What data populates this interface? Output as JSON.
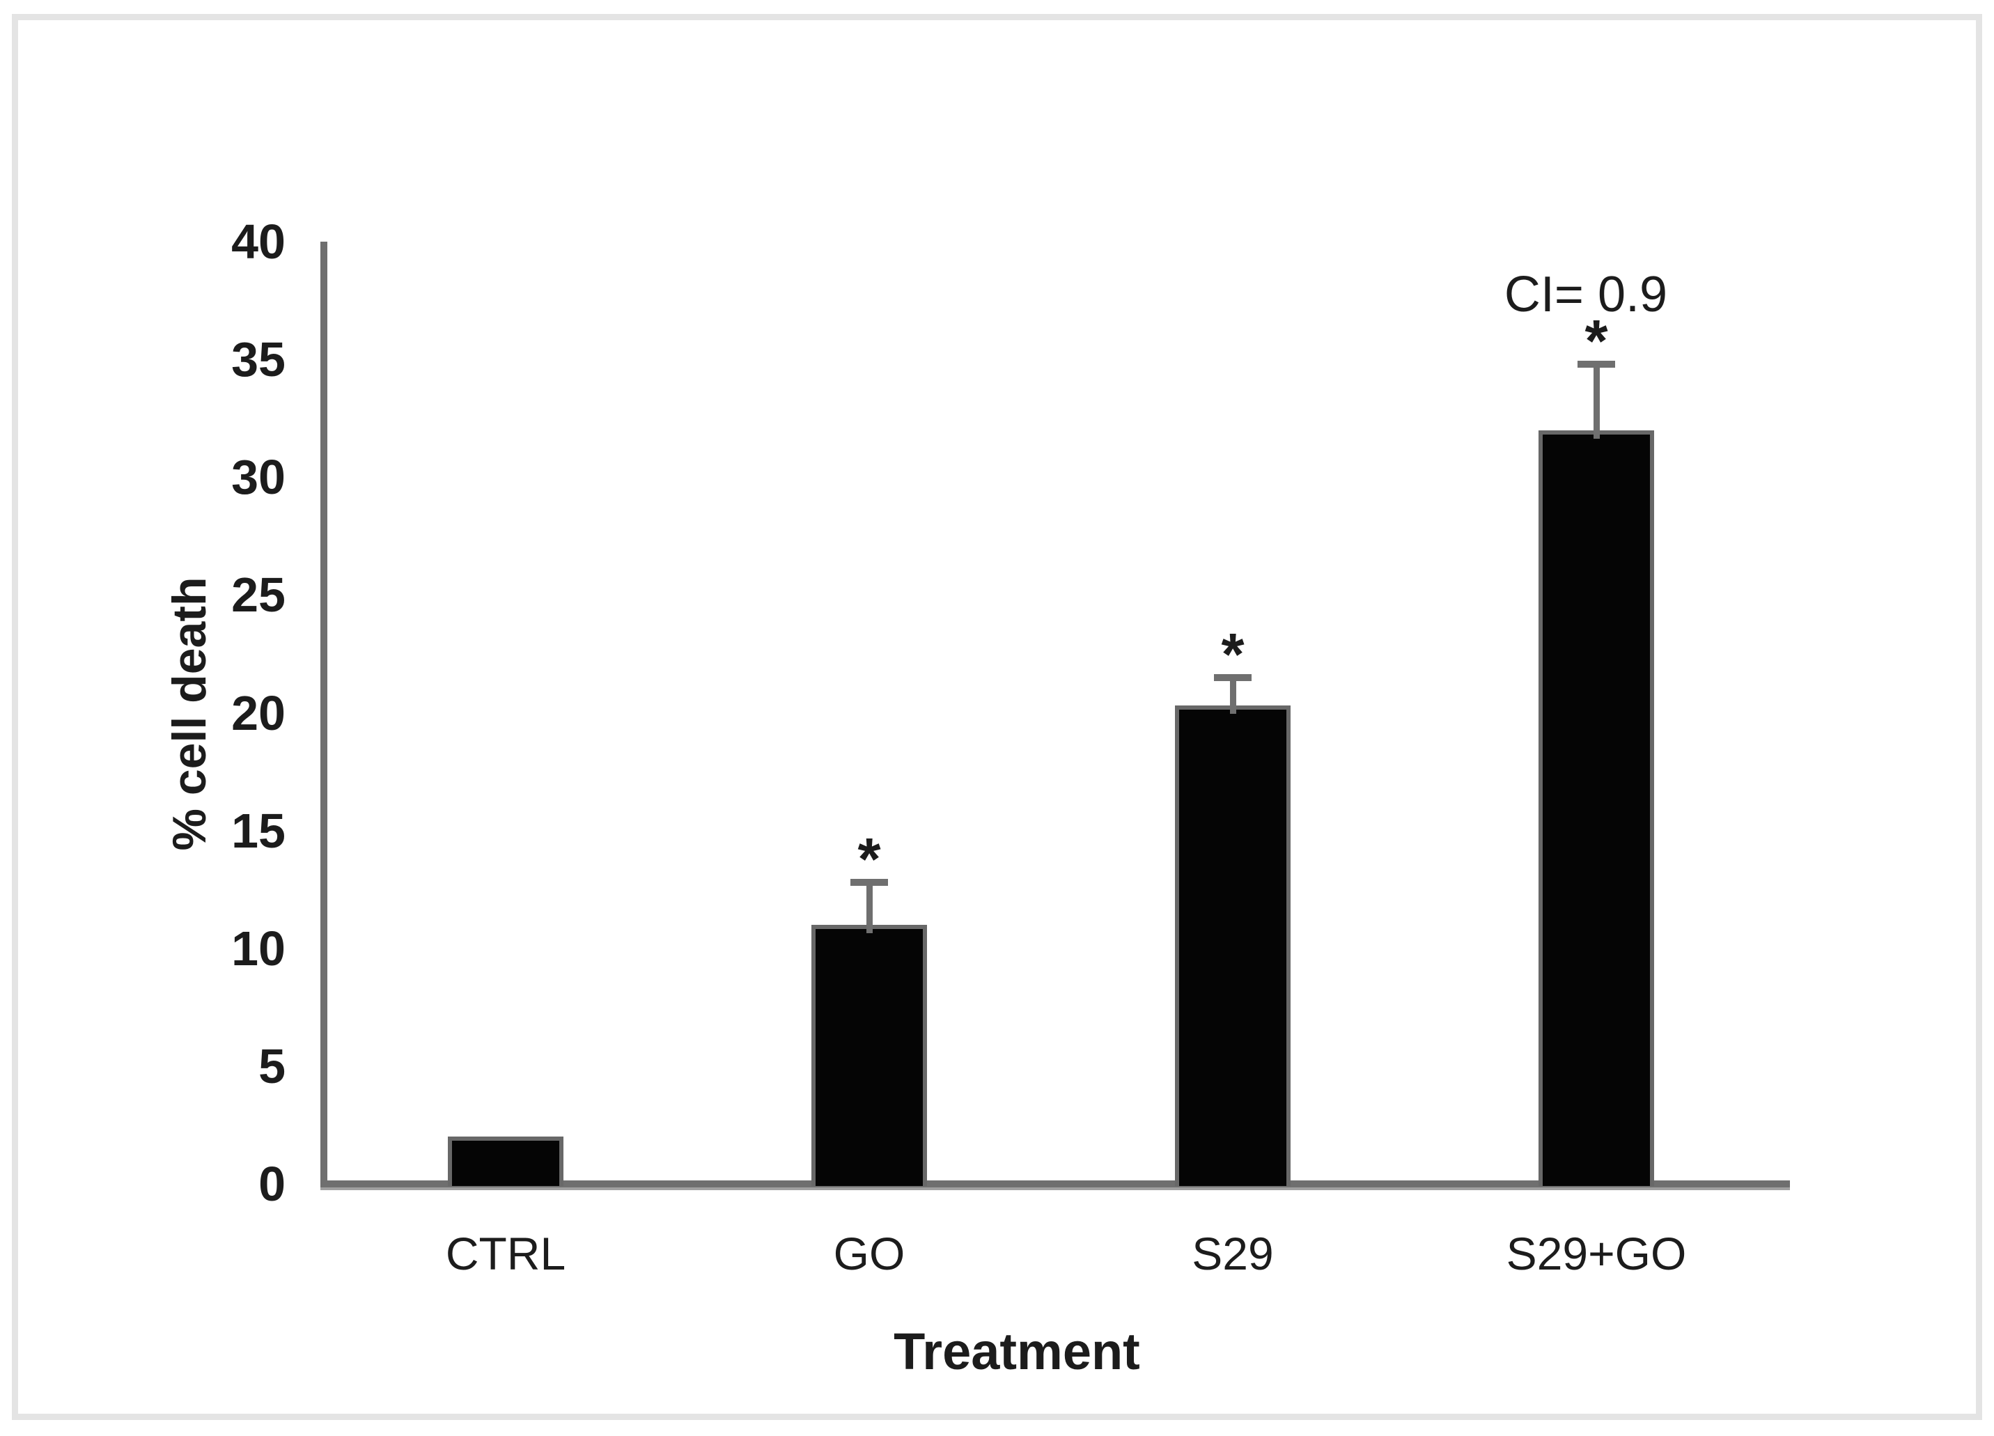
{
  "figure": {
    "background_color": "#ffffff",
    "frame_color": "#e4e4e4",
    "text_color": "#1c1c1c"
  },
  "chart_data": {
    "type": "bar",
    "title": "",
    "categories": [
      "CTRL",
      "GO",
      "S29",
      "S29+GO"
    ],
    "values": [
      2,
      11,
      20.3,
      32
    ],
    "error_plus": [
      0,
      1.8,
      1.2,
      2.8
    ],
    "significance": [
      false,
      true,
      true,
      true
    ],
    "sig_marker": "*",
    "annotations": [
      {
        "target_category": "S29+GO",
        "text": "CI= 0.9"
      }
    ],
    "xlabel": "Treatment",
    "ylabel": "% cell death",
    "yticks": [
      0,
      5,
      10,
      15,
      20,
      25,
      30,
      35,
      40
    ],
    "ylim": [
      0,
      40
    ],
    "grid": false,
    "legend": false,
    "bar_color": "#050505",
    "bar_border_color": "#686868",
    "axis_color": "#6f6f6f",
    "error_bar_color": "#6f6f6f"
  }
}
